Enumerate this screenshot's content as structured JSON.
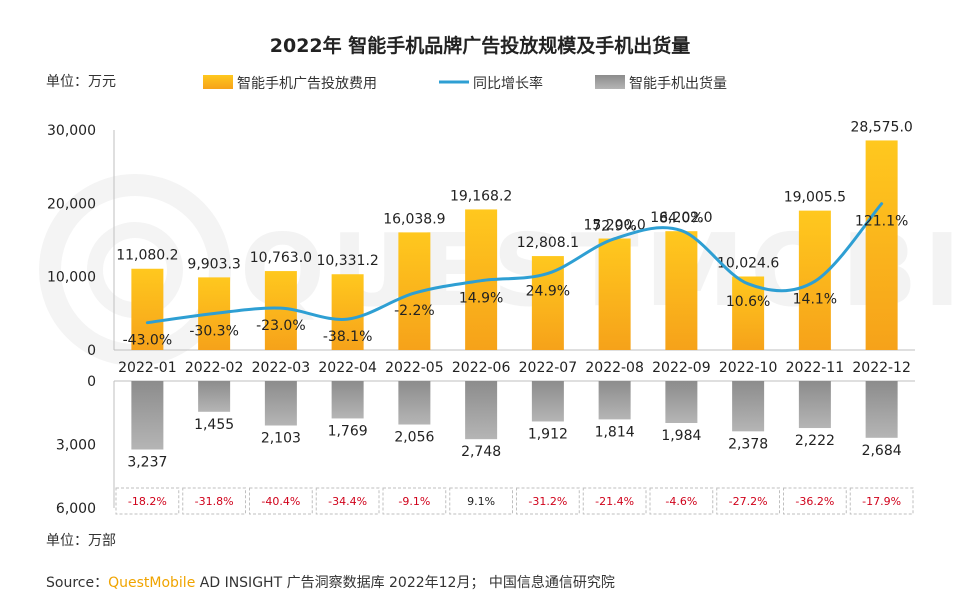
{
  "title": "2022年 智能手机品牌广告投放规模及手机出货量",
  "unit_top": "单位：万元",
  "unit_bottom": "单位：万部",
  "legend": {
    "ad_spend": "智能手机广告投放费用",
    "growth": "同比增长率",
    "shipments": "智能手机出货量"
  },
  "source": {
    "prefix": "Source：",
    "brand": "QuestMobile",
    "rest": " AD INSIGHT 广告洞察数据库 2022年12月； 中国信息通信研究院"
  },
  "watermark": "QUESTMOBILE",
  "colors": {
    "bar_top": "#f8bb1a",
    "bar_bottom": "#a6a6a6",
    "line": "#2e9fd3",
    "yoy_negative": "#d0021b",
    "yoy_positive": "#222222"
  },
  "chart_data": {
    "type": "bar",
    "categories": [
      "2022-01",
      "2022-02",
      "2022-03",
      "2022-04",
      "2022-05",
      "2022-06",
      "2022-07",
      "2022-08",
      "2022-09",
      "2022-10",
      "2022-11",
      "2022-12"
    ],
    "series": [
      {
        "name": "智能手机广告投放费用",
        "values": [
          11080.2,
          9903.3,
          10763.0,
          10331.2,
          16038.9,
          19168.2,
          12808.1,
          15200.0,
          16202.0,
          10024.6,
          19005.5,
          28575.0
        ],
        "labels": [
          "11,080.2",
          "9,903.3",
          "10,763.0",
          "10,331.2",
          "16,038.9",
          "19,168.2",
          "12,808.1",
          "15,200.0",
          "16,202.0",
          "10,024.6",
          "19,005.5",
          "28,575.0"
        ]
      },
      {
        "name": "同比增长率",
        "type": "line",
        "values": [
          -43.0,
          -30.3,
          -23.0,
          -38.1,
          -2.2,
          14.9,
          24.9,
          72.9,
          84.0,
          10.6,
          14.1,
          121.1
        ],
        "labels": [
          "-43.0%",
          "-30.3%",
          "-23.0%",
          "-38.1%",
          "-2.2%",
          "14.9%",
          "24.9%",
          "72.9%",
          "84.0%",
          "10.6%",
          "14.1%",
          "121.1%"
        ]
      },
      {
        "name": "智能手机出货量",
        "values": [
          3237,
          1455,
          2103,
          1769,
          2056,
          2748,
          1912,
          1814,
          1984,
          2378,
          2222,
          2684
        ],
        "labels": [
          "3,237",
          "1,455",
          "2,103",
          "1,769",
          "2,056",
          "2,748",
          "1,912",
          "1,814",
          "1,984",
          "2,378",
          "2,222",
          "2,684"
        ]
      },
      {
        "values": [
          -18.2,
          -31.8,
          -40.4,
          -34.4,
          -9.1,
          9.1,
          -31.2,
          -21.4,
          -4.6,
          -27.2,
          -36.2,
          -17.9
        ],
        "labels": [
          "-18.2%",
          "-31.8%",
          "-40.4%",
          "-34.4%",
          "-9.1%",
          "9.1%",
          "-31.2%",
          "-21.4%",
          "-4.6%",
          "-27.2%",
          "-36.2%",
          "-17.9%"
        ]
      }
    ],
    "y_top": {
      "ylim": [
        0,
        30000
      ],
      "ticks": [
        0,
        10000,
        20000,
        30000
      ],
      "tick_labels": [
        "0",
        "10,000",
        "20,000",
        "30,000"
      ]
    },
    "y_bottom": {
      "ylim": [
        0,
        6000
      ],
      "inverted": true,
      "ticks": [
        0,
        3000,
        6000
      ],
      "tick_labels": [
        "0",
        "3,000",
        "6,000"
      ]
    },
    "grid": false,
    "legend_position": "top"
  }
}
